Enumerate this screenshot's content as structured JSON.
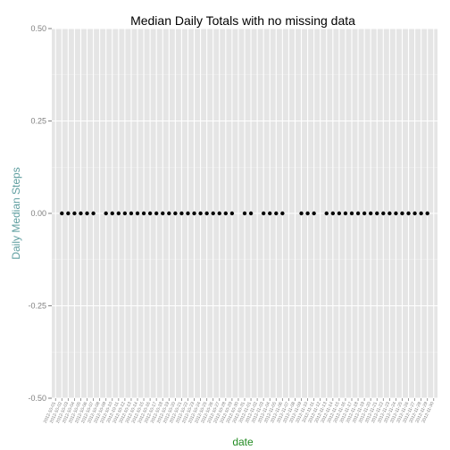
{
  "chart_data": {
    "type": "scatter",
    "title": "Median Daily Totals with no missing data",
    "xlabel": "date",
    "ylabel": "Daily Median Steps",
    "ylim": [
      -0.5,
      0.5
    ],
    "yticks": [
      -0.5,
      -0.25,
      0.0,
      0.25,
      0.5
    ],
    "ytick_labels": [
      "-0.50",
      "-0.25",
      "0.00",
      "0.25",
      "0.50"
    ],
    "grid": true,
    "categories": [
      "2012-10-01",
      "2012-10-02",
      "2012-10-03",
      "2012-10-04",
      "2012-10-05",
      "2012-10-06",
      "2012-10-07",
      "2012-10-08",
      "2012-10-09",
      "2012-10-10",
      "2012-10-11",
      "2012-10-12",
      "2012-10-13",
      "2012-10-14",
      "2012-10-15",
      "2012-10-16",
      "2012-10-17",
      "2012-10-18",
      "2012-10-19",
      "2012-10-20",
      "2012-10-21",
      "2012-10-22",
      "2012-10-23",
      "2012-10-24",
      "2012-10-25",
      "2012-10-26",
      "2012-10-27",
      "2012-10-28",
      "2012-10-29",
      "2012-10-30",
      "2012-10-31",
      "2012-11-01",
      "2012-11-02",
      "2012-11-03",
      "2012-11-04",
      "2012-11-05",
      "2012-11-06",
      "2012-11-07",
      "2012-11-08",
      "2012-11-09",
      "2012-11-10",
      "2012-11-11",
      "2012-11-12",
      "2012-11-13",
      "2012-11-14",
      "2012-11-15",
      "2012-11-16",
      "2012-11-17",
      "2012-11-18",
      "2012-11-19",
      "2012-11-20",
      "2012-11-21",
      "2012-11-22",
      "2012-11-23",
      "2012-11-24",
      "2012-11-25",
      "2012-11-26",
      "2012-11-27",
      "2012-11-28",
      "2012-11-29",
      "2012-11-30"
    ],
    "points": [
      {
        "x": "2012-10-02",
        "y": 0
      },
      {
        "x": "2012-10-03",
        "y": 0
      },
      {
        "x": "2012-10-04",
        "y": 0
      },
      {
        "x": "2012-10-05",
        "y": 0
      },
      {
        "x": "2012-10-06",
        "y": 0
      },
      {
        "x": "2012-10-07",
        "y": 0
      },
      {
        "x": "2012-10-09",
        "y": 0
      },
      {
        "x": "2012-10-10",
        "y": 0
      },
      {
        "x": "2012-10-11",
        "y": 0
      },
      {
        "x": "2012-10-12",
        "y": 0
      },
      {
        "x": "2012-10-13",
        "y": 0
      },
      {
        "x": "2012-10-14",
        "y": 0
      },
      {
        "x": "2012-10-15",
        "y": 0
      },
      {
        "x": "2012-10-16",
        "y": 0
      },
      {
        "x": "2012-10-17",
        "y": 0
      },
      {
        "x": "2012-10-18",
        "y": 0
      },
      {
        "x": "2012-10-19",
        "y": 0
      },
      {
        "x": "2012-10-20",
        "y": 0
      },
      {
        "x": "2012-10-21",
        "y": 0
      },
      {
        "x": "2012-10-22",
        "y": 0
      },
      {
        "x": "2012-10-23",
        "y": 0
      },
      {
        "x": "2012-10-24",
        "y": 0
      },
      {
        "x": "2012-10-25",
        "y": 0
      },
      {
        "x": "2012-10-26",
        "y": 0
      },
      {
        "x": "2012-10-27",
        "y": 0
      },
      {
        "x": "2012-10-28",
        "y": 0
      },
      {
        "x": "2012-10-29",
        "y": 0
      },
      {
        "x": "2012-10-31",
        "y": 0
      },
      {
        "x": "2012-11-01",
        "y": 0
      },
      {
        "x": "2012-11-03",
        "y": 0
      },
      {
        "x": "2012-11-04",
        "y": 0
      },
      {
        "x": "2012-11-05",
        "y": 0
      },
      {
        "x": "2012-11-06",
        "y": 0
      },
      {
        "x": "2012-11-09",
        "y": 0
      },
      {
        "x": "2012-11-10",
        "y": 0
      },
      {
        "x": "2012-11-11",
        "y": 0
      },
      {
        "x": "2012-11-13",
        "y": 0
      },
      {
        "x": "2012-11-14",
        "y": 0
      },
      {
        "x": "2012-11-15",
        "y": 0
      },
      {
        "x": "2012-11-16",
        "y": 0
      },
      {
        "x": "2012-11-17",
        "y": 0
      },
      {
        "x": "2012-11-18",
        "y": 0
      },
      {
        "x": "2012-11-19",
        "y": 0
      },
      {
        "x": "2012-11-20",
        "y": 0
      },
      {
        "x": "2012-11-21",
        "y": 0
      },
      {
        "x": "2012-11-22",
        "y": 0
      },
      {
        "x": "2012-11-23",
        "y": 0
      },
      {
        "x": "2012-11-24",
        "y": 0
      },
      {
        "x": "2012-11-25",
        "y": 0
      },
      {
        "x": "2012-11-26",
        "y": 0
      },
      {
        "x": "2012-11-27",
        "y": 0
      },
      {
        "x": "2012-11-28",
        "y": 0
      },
      {
        "x": "2012-11-29",
        "y": 0
      }
    ]
  },
  "colors": {
    "panel_bg": "#e5e5e5",
    "grid_major": "#ffffff",
    "grid_minor": "#f2f2f2",
    "point": "#000000",
    "xlabel": "#228b22",
    "ylabel": "#5f9ea0",
    "tick_text": "#7f7f7f"
  }
}
